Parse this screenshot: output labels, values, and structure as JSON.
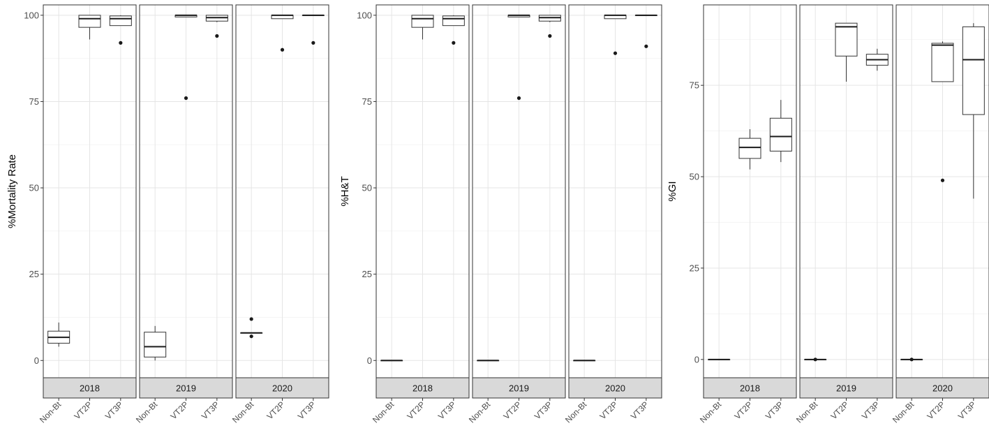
{
  "chart_data": [
    {
      "type": "boxplot",
      "ylabel": "%Mortality Rate",
      "ylim": [
        -5,
        103
      ],
      "yticks": [
        0,
        25,
        50,
        75,
        100
      ],
      "categories": [
        "Non-Bt",
        "VT2P",
        "VT3P"
      ],
      "panels": [
        {
          "label": "2018",
          "boxes": [
            {
              "cat": "Non-Bt",
              "min": 4,
              "q1": 5,
              "median": 6.7,
              "q3": 8.5,
              "max": 11,
              "outliers": []
            },
            {
              "cat": "VT2P",
              "min": 93,
              "q1": 96.5,
              "median": 99,
              "q3": 100,
              "max": 100,
              "outliers": []
            },
            {
              "cat": "VT3P",
              "min": 97,
              "q1": 97,
              "median": 99,
              "q3": 99.8,
              "max": 100,
              "outliers": [
                92
              ]
            }
          ]
        },
        {
          "label": "2019",
          "boxes": [
            {
              "cat": "Non-Bt",
              "min": 0,
              "q1": 1,
              "median": 4,
              "q3": 8.2,
              "max": 10,
              "outliers": []
            },
            {
              "cat": "VT2P",
              "min": 99.5,
              "q1": 99.5,
              "median": 100,
              "q3": 100,
              "max": 100,
              "outliers": [
                76
              ]
            },
            {
              "cat": "VT3P",
              "min": 98,
              "q1": 98.3,
              "median": 99.3,
              "q3": 100,
              "max": 100,
              "outliers": [
                94
              ]
            }
          ]
        },
        {
          "label": "2020",
          "boxes": [
            {
              "cat": "Non-Bt",
              "min": 8,
              "q1": 8,
              "median": 8,
              "q3": 8,
              "max": 8,
              "outliers": [
                12,
                7
              ]
            },
            {
              "cat": "VT2P",
              "min": 99,
              "q1": 99,
              "median": 100,
              "q3": 100,
              "max": 100,
              "outliers": [
                90
              ]
            },
            {
              "cat": "VT3P",
              "min": 100,
              "q1": 100,
              "median": 100,
              "q3": 100,
              "max": 100,
              "outliers": [
                92
              ]
            }
          ]
        }
      ]
    },
    {
      "type": "boxplot",
      "ylabel": "%H&T",
      "ylim": [
        -5,
        103
      ],
      "yticks": [
        0,
        25,
        50,
        75,
        100
      ],
      "categories": [
        "Non-Bt",
        "VT2P",
        "VT3P"
      ],
      "panels": [
        {
          "label": "2018",
          "boxes": [
            {
              "cat": "Non-Bt",
              "min": 0,
              "q1": 0,
              "median": 0,
              "q3": 0,
              "max": 0,
              "outliers": []
            },
            {
              "cat": "VT2P",
              "min": 93,
              "q1": 96.5,
              "median": 99,
              "q3": 100,
              "max": 100,
              "outliers": []
            },
            {
              "cat": "VT3P",
              "min": 97,
              "q1": 97,
              "median": 99,
              "q3": 99.8,
              "max": 100,
              "outliers": [
                92
              ]
            }
          ]
        },
        {
          "label": "2019",
          "boxes": [
            {
              "cat": "Non-Bt",
              "min": 0,
              "q1": 0,
              "median": 0,
              "q3": 0,
              "max": 0,
              "outliers": []
            },
            {
              "cat": "VT2P",
              "min": 99.5,
              "q1": 99.5,
              "median": 100,
              "q3": 100,
              "max": 100,
              "outliers": [
                76
              ]
            },
            {
              "cat": "VT3P",
              "min": 98,
              "q1": 98.3,
              "median": 99.3,
              "q3": 100,
              "max": 100,
              "outliers": [
                94
              ]
            }
          ]
        },
        {
          "label": "2020",
          "boxes": [
            {
              "cat": "Non-Bt",
              "min": 0,
              "q1": 0,
              "median": 0,
              "q3": 0,
              "max": 0,
              "outliers": []
            },
            {
              "cat": "VT2P",
              "min": 99,
              "q1": 99,
              "median": 100,
              "q3": 100,
              "max": 100,
              "outliers": [
                89
              ]
            },
            {
              "cat": "VT3P",
              "min": 100,
              "q1": 100,
              "median": 100,
              "q3": 100,
              "max": 100,
              "outliers": [
                91
              ]
            }
          ]
        }
      ]
    },
    {
      "type": "boxplot",
      "ylabel": "%GI",
      "ylim": [
        -5,
        97
      ],
      "yticks": [
        0,
        25,
        50,
        75
      ],
      "categories": [
        "Non-Bt",
        "VT2P",
        "VT3P"
      ],
      "panels": [
        {
          "label": "2018",
          "boxes": [
            {
              "cat": "Non-Bt",
              "min": 0,
              "q1": 0,
              "median": 0,
              "q3": 0,
              "max": 0,
              "outliers": []
            },
            {
              "cat": "VT2P",
              "min": 52,
              "q1": 55,
              "median": 58,
              "q3": 60.5,
              "max": 63,
              "outliers": []
            },
            {
              "cat": "VT3P",
              "min": 54,
              "q1": 57,
              "median": 61,
              "q3": 66,
              "max": 71,
              "outliers": []
            }
          ]
        },
        {
          "label": "2019",
          "boxes": [
            {
              "cat": "Non-Bt",
              "min": 0,
              "q1": 0,
              "median": 0,
              "q3": 0,
              "max": 0,
              "outliers": [
                0
              ]
            },
            {
              "cat": "VT2P",
              "min": 76,
              "q1": 83,
              "median": 91,
              "q3": 92,
              "max": 92,
              "outliers": []
            },
            {
              "cat": "VT3P",
              "min": 79,
              "q1": 80.5,
              "median": 82,
              "q3": 83.5,
              "max": 85,
              "outliers": []
            }
          ]
        },
        {
          "label": "2020",
          "boxes": [
            {
              "cat": "Non-Bt",
              "min": 0,
              "q1": 0,
              "median": 0,
              "q3": 0,
              "max": 0,
              "outliers": [
                0
              ]
            },
            {
              "cat": "VT2P",
              "min": 76,
              "q1": 76,
              "median": 86,
              "q3": 86.5,
              "max": 87,
              "outliers": [
                49
              ]
            },
            {
              "cat": "VT3P",
              "min": 44,
              "q1": 67,
              "median": 82,
              "q3": 91,
              "max": 92,
              "outliers": []
            }
          ]
        }
      ]
    }
  ]
}
